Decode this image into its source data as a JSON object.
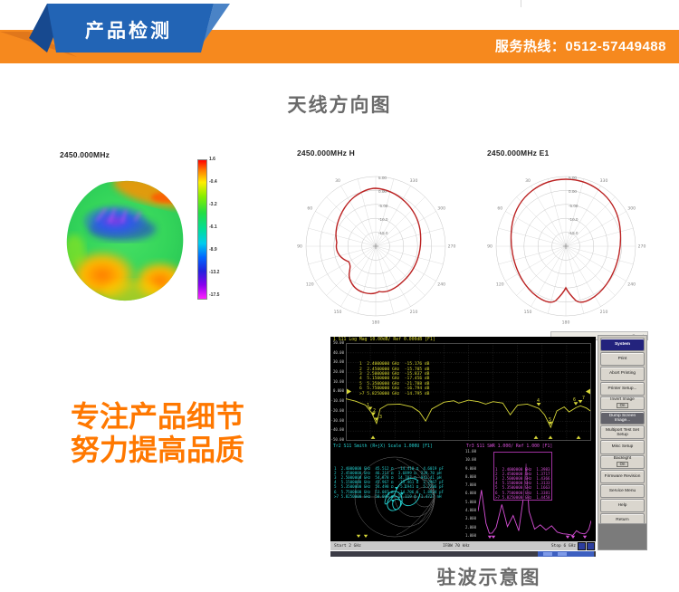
{
  "header": {
    "ribbon_label": "产品检测",
    "hotline": "服务热线：0512-57449488",
    "band_color": "#f6891e",
    "ribbon_color": "#2264b5"
  },
  "antenna_section": {
    "title": "天线方向图",
    "pattern3d": {
      "label": "2450.000MHz",
      "colorbar_ticks": [
        "1.6",
        "-0.4",
        "-3.2",
        "-6.1",
        "-8.9",
        "-13.2",
        "-17.5"
      ]
    },
    "polar_h": {
      "label": "2450.000MHz  H",
      "angle_labels": [
        "30",
        "60",
        "90",
        "120",
        "150",
        "180",
        "210",
        "240",
        "270",
        "300",
        "330"
      ],
      "radial_labels": [
        "5.00",
        "0.00",
        "-5.00",
        "-10.0",
        "-15.0"
      ]
    },
    "polar_e1": {
      "label": "2450.000MHz  E1",
      "angle_labels": [
        "30",
        "60",
        "90",
        "120",
        "150",
        "180",
        "210",
        "240",
        "270",
        "300",
        "330"
      ],
      "radial_labels": [
        "5.00",
        "0.00",
        "-5.00",
        "-10.0",
        "-15.0"
      ]
    }
  },
  "slogan": {
    "line1": "专注产品细节",
    "line2": "努力提高品质",
    "color": "#ff7800"
  },
  "vswr_section": {
    "caption": "驻波示意图",
    "analyzer": {
      "corner_button": "Rescale",
      "tr1": {
        "header": "1 S11 Log Mag 10.00dB/ Ref 0.000dB [F1]",
        "y_labels": [
          "50.00",
          "40.00",
          "30.00",
          "20.00",
          "10.00",
          "0.000",
          "-10.00",
          "-20.00",
          "-30.00",
          "-40.00",
          "-50.00"
        ],
        "markers": [
          "1  2.4000000 GHz  -15.176 dB",
          "2  2.4500000 GHz  -15.705 dB",
          "3  2.5000000 GHz  -15.837 dB",
          "4  5.1500000 GHz  -17.456 dB",
          "5  5.3500000 GHz  -21.788 dB",
          "6  5.7500000 GHz  -16.794 dB",
          ">7 5.8250000 GHz  -14.795 dB"
        ]
      },
      "tr2": {
        "header": "Tr2 S11 Smith (R+jX) Scale 1.000U [F1]",
        "markers": [
          "1  2.4000000 GHz  45.512 Ω  -14.410 Ω  4.6019 pF",
          "2  2.4500000 GHz  46.211 Ω  3.6899 Ω  239.70 pH",
          "3  2.5000000 GHz  54.878 Ω  14.787 Ω  941.41 pH",
          "4  5.1500000 GHz  45.967 Ω  -13.461 Ω  2.2967 pF",
          "5  5.3500000 GHz  54.498 Ω  -5.1941 Ω  5.7286 pF",
          "6  5.7500000 GHz  53.087 Ω  -14.706 Ω  1.8824 pF",
          ">7 5.8250000 GHz  58.099 Ω  14.119 Ω  1.4727 nH"
        ]
      },
      "tr3": {
        "header": "Tr3 S11 SWR 1.000/ Ref 1.000 [F1]",
        "y_labels": [
          "11.00",
          "10.00",
          "9.000",
          "8.000",
          "7.000",
          "6.000",
          "5.000",
          "4.000",
          "3.000",
          "2.000",
          "1.000"
        ],
        "markers": [
          "1  2.4000000 GHz  1.3983",
          "2  2.4500000 GHz  1.3717",
          "3  2.5000000 GHz  1.4366",
          "4  5.1500000 GHz  1.3133",
          "5  5.3500000 GHz  1.1663",
          "6  5.7500000 GHz  1.3381",
          ">7 5.8250000 GHz  1.4458"
        ]
      },
      "status": {
        "start": "Start 2 GHz",
        "ifbw": "IFBW 70 kHz",
        "stop": "Stop 6 GHz"
      },
      "softkeys": [
        {
          "label": "System",
          "type": "title"
        },
        {
          "label": "Print"
        },
        {
          "label": "Abort Printing"
        },
        {
          "label": "Printer Setup..."
        },
        {
          "label": "Invert Image",
          "sub": "On"
        },
        {
          "label": "Dump Screen Image...",
          "type": "active"
        },
        {
          "label": "Multiport Test Set Setup"
        },
        {
          "label": "Misc Setup"
        },
        {
          "label": "Backlight",
          "sub": "On"
        },
        {
          "label": "Firmware Revision"
        },
        {
          "label": "Service Menu"
        },
        {
          "label": "Help"
        },
        {
          "label": "Return"
        }
      ]
    }
  }
}
